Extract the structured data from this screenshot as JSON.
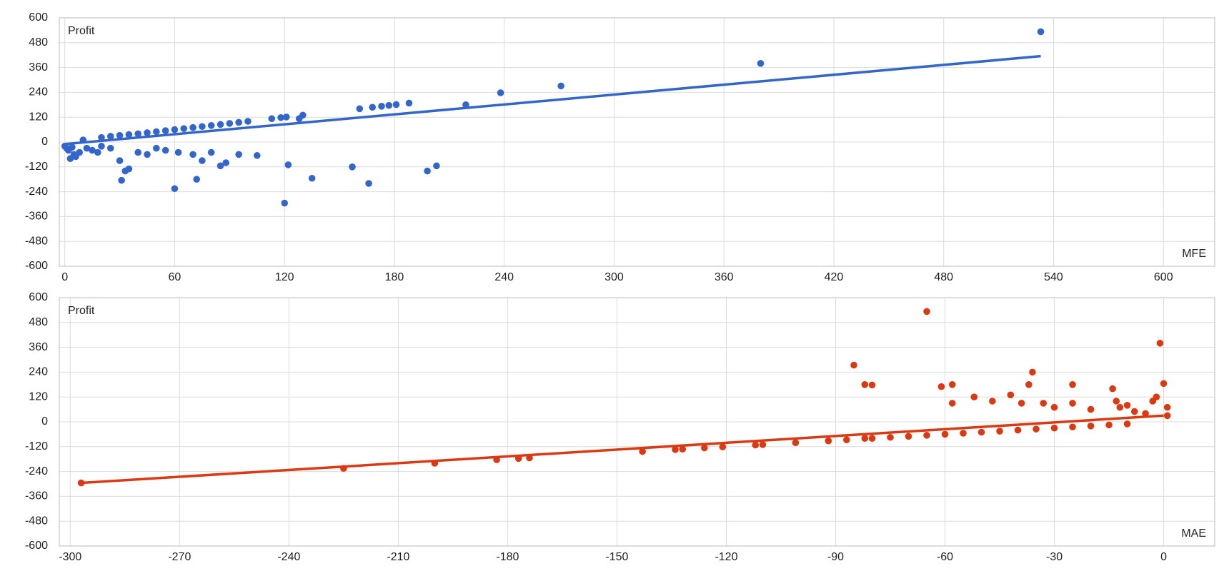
{
  "chart_data": [
    {
      "type": "scatter",
      "y_label": "Profit",
      "x_label": "MFE",
      "color": "#3366cc",
      "grid": true,
      "x": [
        533,
        380,
        271,
        238,
        219,
        188,
        181,
        177,
        173,
        168,
        161,
        130,
        128,
        121,
        118,
        113,
        20,
        25,
        30,
        35,
        40,
        45,
        50,
        55,
        60,
        65,
        70,
        75,
        80,
        85,
        90,
        95,
        100,
        0,
        2,
        3,
        5,
        8,
        10,
        12,
        15,
        18,
        20,
        25,
        30,
        31,
        33,
        35,
        40,
        45,
        50,
        55,
        60,
        62,
        70,
        72,
        75,
        80,
        85,
        88,
        95,
        105,
        120,
        122,
        135,
        157,
        166,
        198,
        203,
        1,
        4,
        6
      ],
      "values": [
        533,
        380,
        271,
        238,
        180,
        188,
        181,
        177,
        173,
        168,
        161,
        130,
        113,
        121,
        118,
        113,
        22,
        28,
        32,
        36,
        40,
        45,
        50,
        55,
        60,
        65,
        70,
        75,
        80,
        85,
        90,
        95,
        100,
        -20,
        -40,
        -80,
        -60,
        -50,
        10,
        -30,
        -40,
        -50,
        -20,
        -30,
        -90,
        -185,
        -140,
        -130,
        -50,
        -60,
        -30,
        -40,
        -225,
        -50,
        -60,
        -180,
        -90,
        -50,
        -115,
        -100,
        -60,
        -65,
        -295,
        -110,
        -175,
        -120,
        -200,
        -140,
        -115,
        -30,
        -25,
        -70
      ],
      "trendline": {
        "x": [
          0,
          533
        ],
        "values": [
          -10,
          415
        ]
      },
      "xlim": [
        -3,
        628
      ],
      "ylim": [
        -600,
        600
      ],
      "xticks": [
        0,
        60,
        120,
        180,
        240,
        300,
        360,
        420,
        480,
        540,
        600
      ],
      "yticks": [
        -600,
        -480,
        -360,
        -240,
        -120,
        0,
        120,
        240,
        360,
        480,
        600
      ]
    },
    {
      "type": "scatter",
      "y_label": "Profit",
      "x_label": "MAE",
      "color": "#dc3912",
      "grid": true,
      "x": [
        -297,
        -225,
        -200,
        -183,
        -177,
        -174,
        -143,
        -134,
        -132,
        -126,
        -121,
        -112,
        -110,
        -101,
        -92,
        -87,
        -85,
        -82,
        -80,
        -82,
        -80,
        -75,
        -70,
        -65,
        -65,
        -60,
        -61,
        -58,
        -58,
        -55,
        -52,
        -50,
        -47,
        -45,
        -42,
        -40,
        -39,
        -37,
        -36,
        -35,
        -33,
        -30,
        -30,
        -25,
        -25,
        -25,
        -20,
        -20,
        -15,
        -14,
        -13,
        -12,
        -10,
        -10,
        -8,
        -5,
        -3,
        -2,
        -1,
        0,
        1,
        1
      ],
      "values": [
        -295,
        -225,
        -200,
        -183,
        -177,
        -174,
        -143,
        -134,
        -132,
        -126,
        -121,
        -112,
        -110,
        -101,
        -92,
        -87,
        274,
        180,
        178,
        -80,
        -80,
        -75,
        -70,
        -65,
        533,
        -60,
        170,
        180,
        90,
        -55,
        120,
        -50,
        100,
        -45,
        130,
        -40,
        90,
        180,
        240,
        -35,
        90,
        -30,
        70,
        -25,
        180,
        90,
        -20,
        60,
        -15,
        160,
        100,
        70,
        -10,
        80,
        50,
        40,
        100,
        120,
        380,
        185,
        70,
        30
      ],
      "trendline": {
        "x": [
          -297,
          0
        ],
        "values": [
          -295,
          30
        ]
      },
      "xlim": [
        -303,
        14
      ],
      "ylim": [
        -600,
        600
      ],
      "xticks": [
        -300,
        -270,
        -240,
        -210,
        -180,
        -150,
        -120,
        -90,
        -60,
        -30,
        0
      ],
      "yticks": [
        -600,
        -480,
        -360,
        -240,
        -120,
        0,
        120,
        240,
        360,
        480,
        600
      ]
    }
  ]
}
